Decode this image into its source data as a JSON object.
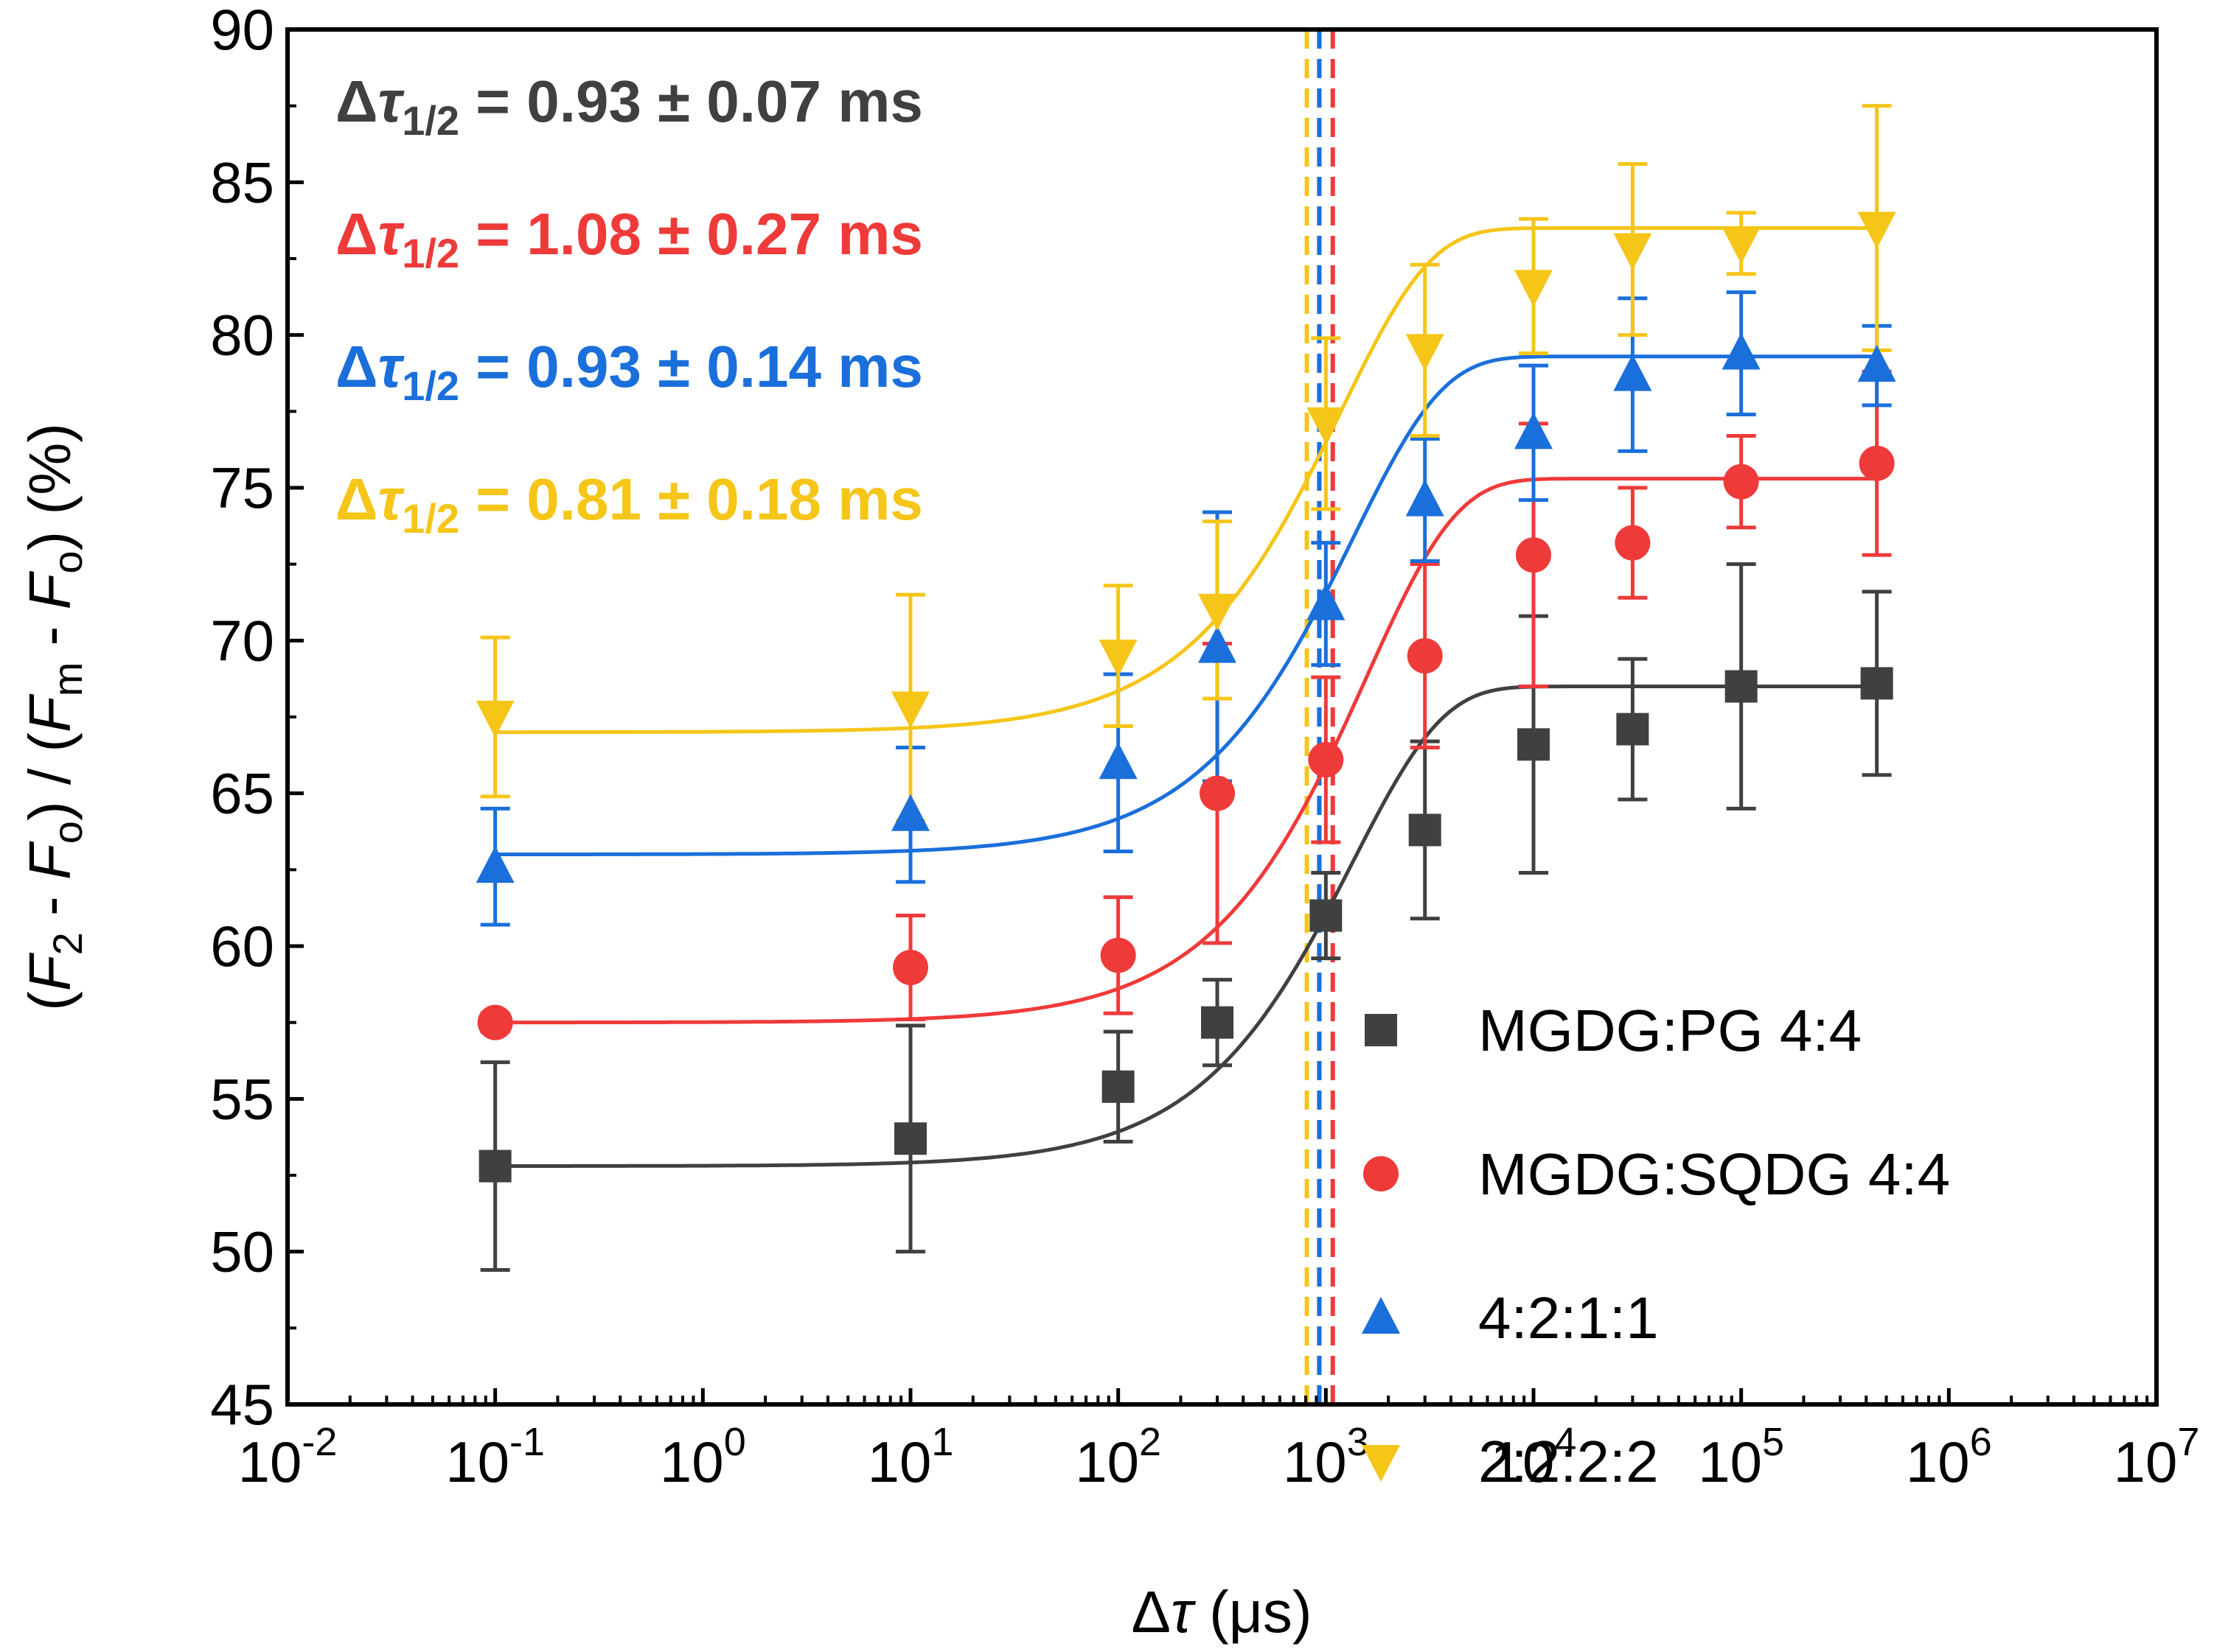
{
  "chart_data": {
    "type": "scatter",
    "x_scale": "log",
    "xlim_exponent": [
      -2,
      7
    ],
    "ylim": [
      45,
      90
    ],
    "y_ticks": [
      45,
      50,
      55,
      60,
      65,
      70,
      75,
      80,
      85,
      90
    ],
    "x_tick_base": "10",
    "x_tick_exponents": [
      "-2",
      "-1",
      "0",
      "1",
      "2",
      "3",
      "4",
      "5",
      "6",
      "7"
    ],
    "xlabel": {
      "symbol": "Δ",
      "var": "τ",
      "unit": " (μs)"
    },
    "ylabel": {
      "p1": "(",
      "F2": "F",
      "s2": "2",
      "minus1": " - ",
      "Fo1": "F",
      "so1": "o",
      "mid": ") / (",
      "Fm": "F",
      "sm": "m",
      "minus2": " - ",
      "Fo2": "F",
      "so2": "o",
      "end": ") (%)"
    },
    "series": [
      {
        "name": "MGDG:PG 4:4",
        "color": "#404040",
        "marker": "square",
        "x": [
          0.1,
          10,
          100,
          300,
          1000,
          3000,
          10000,
          30000,
          100000,
          450000
        ],
        "y": [
          52.8,
          53.7,
          55.4,
          57.5,
          61.0,
          63.8,
          66.6,
          67.1,
          68.5,
          68.6
        ],
        "err": [
          3.4,
          3.7,
          1.8,
          1.4,
          1.4,
          2.9,
          4.2,
          2.3,
          4.0,
          3.0
        ],
        "fit": {
          "A0": 52.8,
          "A1": 68.5,
          "t_half": 930
        },
        "vline_x": 930,
        "annotation": {
          "delta": "Δ",
          "tau": "τ",
          "sub": "1/2",
          "text": " = 0.93 ± 0.07 ms"
        }
      },
      {
        "name": "MGDG:SQDG 4:4",
        "color": "#ef3a3a",
        "marker": "circle",
        "x": [
          0.1,
          10,
          100,
          300,
          1000,
          3000,
          10000,
          30000,
          100000,
          450000
        ],
        "y": [
          57.5,
          59.3,
          59.7,
          65.0,
          66.1,
          69.5,
          72.8,
          73.2,
          75.2,
          75.8
        ],
        "err": [
          0.3,
          1.7,
          1.9,
          4.9,
          2.7,
          3.0,
          4.3,
          1.8,
          1.5,
          3.0
        ],
        "fit": {
          "A0": 57.5,
          "A1": 75.3,
          "t_half": 1080
        },
        "vline_x": 1080,
        "annotation": {
          "delta": "Δ",
          "tau": "τ",
          "sub": "1/2",
          "text": " = 1.08 ± 0.27 ms"
        }
      },
      {
        "name": "4:2:1:1",
        "color": "#1a6fdb",
        "marker": "triangle-up",
        "x": [
          0.1,
          10,
          100,
          300,
          1000,
          3000,
          10000,
          30000,
          100000,
          450000
        ],
        "y": [
          62.6,
          64.3,
          66.0,
          69.8,
          71.2,
          74.6,
          76.8,
          78.7,
          79.4,
          79.0
        ],
        "err": [
          1.9,
          2.2,
          2.9,
          4.4,
          2.0,
          2.0,
          2.2,
          2.5,
          2.0,
          1.3
        ],
        "fit": {
          "A0": 63.0,
          "A1": 79.3,
          "t_half": 930
        },
        "vline_x": 930,
        "annotation": {
          "delta": "Δ",
          "tau": "τ",
          "sub": "1/2",
          "text": " = 0.93 ± 0.14 ms"
        }
      },
      {
        "name": "2:2:2:2",
        "color": "#f5c518",
        "marker": "triangle-down",
        "x": [
          0.1,
          10,
          100,
          300,
          1000,
          3000,
          10000,
          30000,
          100000,
          450000
        ],
        "y": [
          67.5,
          67.8,
          69.5,
          71.0,
          77.1,
          79.5,
          81.6,
          82.8,
          83.0,
          83.5
        ],
        "err": [
          2.6,
          3.7,
          2.3,
          2.9,
          2.8,
          2.8,
          2.2,
          2.8,
          1.0,
          4.0
        ],
        "fit": {
          "A0": 67.0,
          "A1": 83.5,
          "t_half": 810
        },
        "vline_x": 810,
        "annotation": {
          "delta": "Δ",
          "tau": "τ",
          "sub": "1/2",
          "text": " = 0.81 ± 0.18 ms"
        }
      }
    ],
    "legend_position": "bottom-right"
  }
}
